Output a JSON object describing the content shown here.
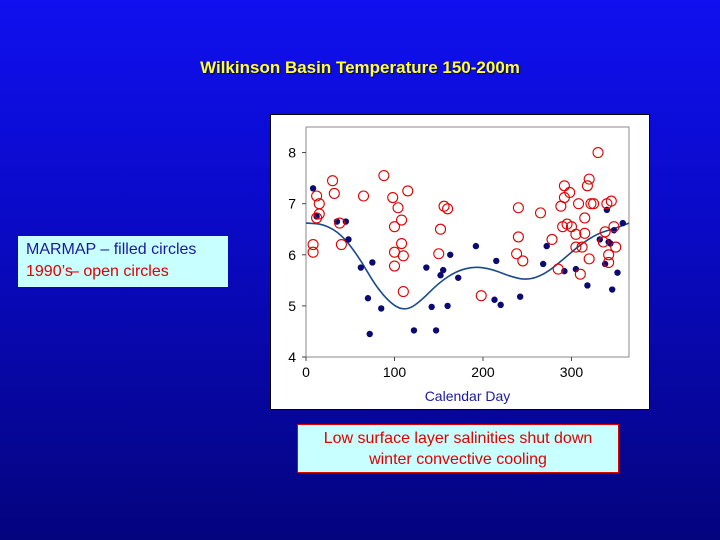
{
  "slide": {
    "title": "Wilkinson Basin Temperature  150-200m",
    "legend": {
      "line1": "MARMAP – filled circles",
      "line2_prefix": "1990’s",
      "line2_suffix": "– open circles"
    },
    "note": {
      "line1": "Low surface layer salinities shut down",
      "line2": "winter convective cooling"
    }
  },
  "colors": {
    "filled": "#0a0a70",
    "open": "#e00000",
    "curve": "#1a4a8a",
    "title": "#ffff33",
    "box_bg": "#c8ffff"
  },
  "chart_data": {
    "type": "scatter",
    "title": "",
    "xlabel": "Calendar Day",
    "ylabel": "",
    "xlim": [
      0,
      365
    ],
    "ylim": [
      4,
      8.5
    ],
    "x_ticks": [
      0,
      100,
      200,
      300
    ],
    "y_ticks": [
      4,
      5,
      6,
      7,
      8
    ],
    "grid": false,
    "series": [
      {
        "name": "MARMAP",
        "marker": "filled",
        "points": [
          [
            8,
            7.3
          ],
          [
            12,
            6.75
          ],
          [
            35,
            6.65
          ],
          [
            45,
            6.65
          ],
          [
            48,
            6.3
          ],
          [
            62,
            5.75
          ],
          [
            70,
            5.15
          ],
          [
            72,
            4.45
          ],
          [
            75,
            5.85
          ],
          [
            85,
            4.95
          ],
          [
            122,
            4.52
          ],
          [
            136,
            5.75
          ],
          [
            142,
            4.98
          ],
          [
            147,
            4.52
          ],
          [
            152,
            5.6
          ],
          [
            155,
            5.7
          ],
          [
            160,
            5.0
          ],
          [
            163,
            6.0
          ],
          [
            172,
            5.55
          ],
          [
            192,
            6.17
          ],
          [
            213,
            5.12
          ],
          [
            215,
            5.88
          ],
          [
            220,
            5.02
          ],
          [
            242,
            5.18
          ],
          [
            268,
            5.82
          ],
          [
            272,
            6.17
          ],
          [
            292,
            5.68
          ],
          [
            305,
            5.72
          ],
          [
            318,
            5.4
          ],
          [
            332,
            6.3
          ],
          [
            338,
            5.82
          ],
          [
            340,
            6.88
          ],
          [
            342,
            6.25
          ],
          [
            344,
            6.22
          ],
          [
            346,
            5.32
          ],
          [
            348,
            6.48
          ],
          [
            352,
            5.65
          ],
          [
            358,
            6.62
          ]
        ]
      },
      {
        "name": "1990's",
        "marker": "open",
        "points": [
          [
            8,
            6.2
          ],
          [
            8,
            6.05
          ],
          [
            12,
            7.15
          ],
          [
            12,
            6.72
          ],
          [
            15,
            6.8
          ],
          [
            15,
            7.0
          ],
          [
            30,
            7.45
          ],
          [
            32,
            7.2
          ],
          [
            38,
            6.62
          ],
          [
            40,
            6.2
          ],
          [
            65,
            7.15
          ],
          [
            88,
            7.55
          ],
          [
            98,
            7.12
          ],
          [
            100,
            6.55
          ],
          [
            100,
            6.05
          ],
          [
            100,
            5.78
          ],
          [
            104,
            6.92
          ],
          [
            108,
            6.22
          ],
          [
            108,
            6.68
          ],
          [
            110,
            5.98
          ],
          [
            110,
            5.28
          ],
          [
            115,
            7.25
          ],
          [
            150,
            6.02
          ],
          [
            152,
            6.5
          ],
          [
            156,
            6.95
          ],
          [
            160,
            6.9
          ],
          [
            198,
            5.2
          ],
          [
            238,
            6.02
          ],
          [
            240,
            6.92
          ],
          [
            240,
            6.35
          ],
          [
            245,
            5.88
          ],
          [
            265,
            6.82
          ],
          [
            278,
            6.3
          ],
          [
            285,
            5.72
          ],
          [
            288,
            6.95
          ],
          [
            290,
            6.55
          ],
          [
            292,
            7.12
          ],
          [
            292,
            7.35
          ],
          [
            295,
            6.6
          ],
          [
            298,
            7.22
          ],
          [
            300,
            6.55
          ],
          [
            305,
            6.4
          ],
          [
            305,
            6.15
          ],
          [
            308,
            7.0
          ],
          [
            310,
            5.62
          ],
          [
            312,
            6.15
          ],
          [
            315,
            6.72
          ],
          [
            315,
            6.42
          ],
          [
            318,
            7.35
          ],
          [
            320,
            7.48
          ],
          [
            320,
            5.92
          ],
          [
            322,
            7.0
          ],
          [
            325,
            7.0
          ],
          [
            330,
            8.0
          ],
          [
            336,
            6.25
          ],
          [
            338,
            6.45
          ],
          [
            340,
            7.0
          ],
          [
            342,
            6.0
          ],
          [
            342,
            5.85
          ],
          [
            345,
            7.05
          ],
          [
            348,
            6.55
          ],
          [
            350,
            6.15
          ]
        ]
      }
    ],
    "fit_curve": {
      "style": "line",
      "points": [
        [
          0,
          6.62
        ],
        [
          20,
          6.6
        ],
        [
          40,
          6.4
        ],
        [
          60,
          5.95
        ],
        [
          80,
          5.35
        ],
        [
          100,
          4.98
        ],
        [
          115,
          4.92
        ],
        [
          130,
          5.1
        ],
        [
          150,
          5.45
        ],
        [
          170,
          5.68
        ],
        [
          190,
          5.77
        ],
        [
          210,
          5.72
        ],
        [
          230,
          5.58
        ],
        [
          250,
          5.5
        ],
        [
          270,
          5.62
        ],
        [
          290,
          5.9
        ],
        [
          310,
          6.2
        ],
        [
          330,
          6.42
        ],
        [
          350,
          6.52
        ],
        [
          365,
          6.62
        ]
      ]
    }
  }
}
